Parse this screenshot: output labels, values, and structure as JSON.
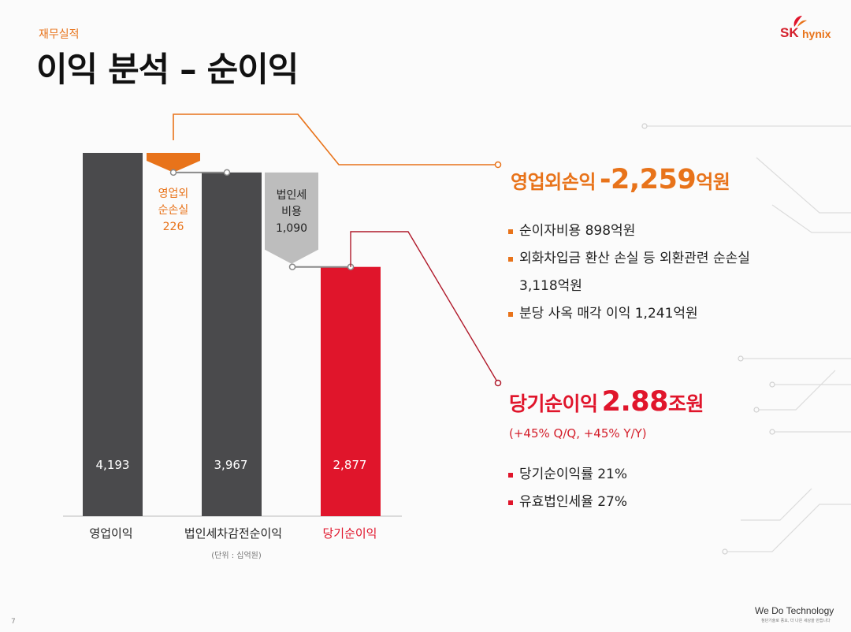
{
  "header": {
    "section_label": "재무실적",
    "title": "이익 분석 – 순이익",
    "logo_sk": "SK",
    "logo_hynix": "hynix"
  },
  "colors": {
    "orange": "#e8731a",
    "red": "#e0152b",
    "dark_bar": "#4a4a4c",
    "gray": "#bdbdbd"
  },
  "chart_data": {
    "type": "bar",
    "categories": [
      "영업이익",
      "법인세차감전순이익",
      "당기순이익"
    ],
    "values": [
      4193,
      3967,
      2877
    ],
    "value_labels": [
      "4,193",
      "3,967",
      "2,877"
    ],
    "deltas": [
      {
        "label_lines": [
          "영업외",
          "순손실",
          "226"
        ],
        "value": -226,
        "color": "orange"
      },
      {
        "label_lines": [
          "법인세",
          "비용",
          "1,090"
        ],
        "value": -1090,
        "color": "gray"
      }
    ],
    "unit_note": "(단위 : 십억원)",
    "legend": null
  },
  "panel": {
    "nonop": {
      "label": "영업외손익",
      "value": "-2,259",
      "unit": "억원",
      "bullets": [
        [
          "순이자비용 898억원"
        ],
        [
          "외화차입금 환산 손실 등 외환관련 순손실",
          "3,118억원"
        ],
        [
          "분당 사옥 매각 이익 1,241억원"
        ]
      ]
    },
    "net": {
      "label": "당기순이익",
      "value": "2.88",
      "unit": "조원",
      "sub": "(+45% Q/Q, +45% Y/Y)",
      "bullets": [
        [
          "당기순이익률 21%"
        ],
        [
          "유효법인세율 27%"
        ]
      ]
    }
  },
  "footer": {
    "page": "7",
    "brand": "We Do Technology",
    "brand_sub": "첨단기술로 풍요, 더 나은 세상을 만듭니다"
  }
}
